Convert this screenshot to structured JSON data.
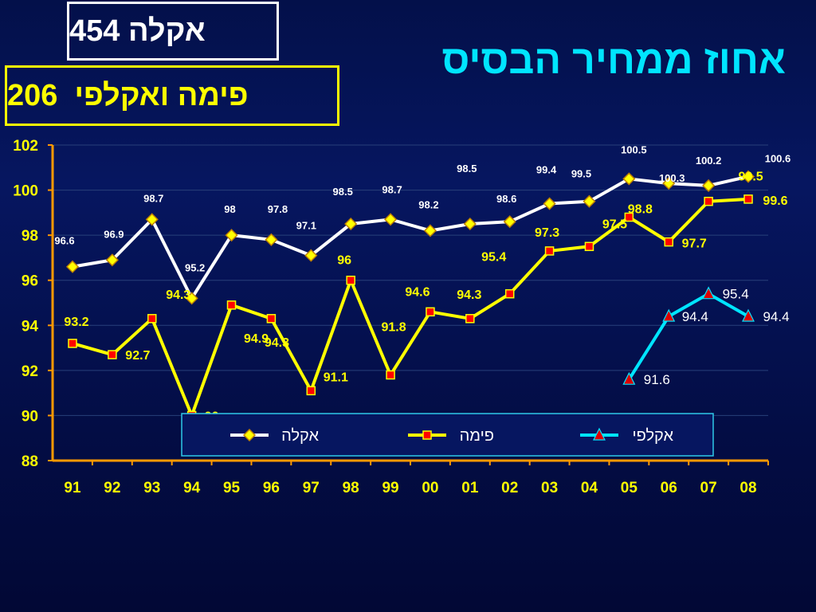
{
  "header": {
    "box_top": "אקלה 454",
    "box_second": "פימה ואקלפי  206",
    "title": "אחוז ממחיר הבסיס"
  },
  "colors": {
    "akala": "#ffffff",
    "pima": "#ffff00",
    "akalpi": "#00e5ff",
    "axis": "#ff9900",
    "marker_pima": "#ff0000",
    "marker_akalpi": "#dd0000"
  },
  "chart_data": {
    "type": "line",
    "categories": [
      "91",
      "92",
      "93",
      "94",
      "95",
      "96",
      "97",
      "98",
      "99",
      "00",
      "01",
      "02",
      "03",
      "04",
      "05",
      "06",
      "07",
      "08"
    ],
    "ylim": [
      88,
      102
    ],
    "yticks": [
      88,
      90,
      92,
      94,
      96,
      98,
      100,
      102
    ],
    "grid": true,
    "legend": "bottom-right",
    "series": [
      {
        "name": "אקלה",
        "values": [
          96.6,
          96.9,
          98.7,
          95.2,
          98,
          97.8,
          97.1,
          98.5,
          98.7,
          98.2,
          98.5,
          98.6,
          99.4,
          99.5,
          100.5,
          100.3,
          100.2,
          100.6
        ],
        "labels": [
          "96.6",
          "96.9",
          "98.7",
          "95.2",
          "98",
          "97.8",
          "97.1",
          "98.5",
          "98.7",
          "98.2",
          "98.5",
          "98.6",
          "99.4",
          "99.5",
          "100.5",
          "100.3",
          "100.2",
          "100.6"
        ]
      },
      {
        "name": "פימה",
        "values": [
          93.2,
          92.7,
          94.3,
          90,
          94.9,
          94.3,
          91.1,
          96,
          91.8,
          94.6,
          94.3,
          95.4,
          97.3,
          97.5,
          98.8,
          97.7,
          99.5,
          99.6
        ],
        "labels": [
          "93.2",
          "92.7",
          "94.3",
          "90",
          "94.9",
          "94.3",
          "91.1",
          "96",
          "91.8",
          "94.6",
          "94.3",
          "95.4",
          "97.3",
          "97.5",
          "98.8",
          "97.7",
          "99.5",
          "99.6"
        ]
      },
      {
        "name": "אקלפי",
        "values": [
          null,
          null,
          null,
          null,
          null,
          null,
          null,
          null,
          null,
          null,
          null,
          null,
          null,
          null,
          91.6,
          94.4,
          95.4,
          94.4
        ],
        "labels": [
          "",
          "",
          "",
          "",
          "",
          "",
          "",
          "",
          "",
          "",
          "",
          "",
          "",
          "",
          "91.6",
          "94.4",
          "95.4",
          "94.4"
        ]
      }
    ]
  }
}
